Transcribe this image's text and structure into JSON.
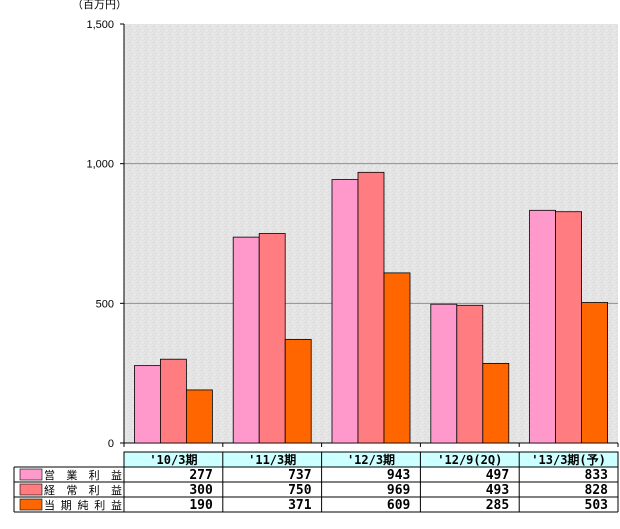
{
  "chart_data": {
    "type": "bar",
    "unit_label": "（百万円）",
    "categories": [
      "'10/3期",
      "'11/3期",
      "'12/3期",
      "'12/9(2Q)",
      "'13/3期(予)"
    ],
    "series": [
      {
        "name": "営業利益",
        "values": [
          277,
          737,
          943,
          497,
          833
        ],
        "color": "#ff99cc"
      },
      {
        "name": "経常利益",
        "values": [
          300,
          750,
          969,
          493,
          828
        ],
        "color": "#ff7c80"
      },
      {
        "name": "当期純利益",
        "values": [
          190,
          371,
          609,
          285,
          503
        ],
        "color": "#ff6600"
      }
    ],
    "ylim": [
      0,
      1500
    ],
    "yticks": [
      0,
      500,
      1000,
      1500
    ],
    "ytick_labels": [
      "0",
      "500",
      "1,000",
      "1,500"
    ],
    "grid": true,
    "background": "textured light gray",
    "category_header_color": "#ccffff",
    "data_table": true
  }
}
